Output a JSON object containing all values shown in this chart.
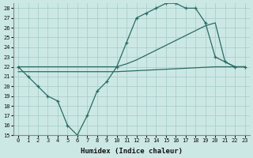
{
  "xlabel": "Humidex (Indice chaleur)",
  "bg_color": "#cce8e5",
  "grid_color": "#aacfcb",
  "line_color": "#2a6b65",
  "xlim": [
    -0.5,
    23.5
  ],
  "ylim": [
    15,
    28.5
  ],
  "xticks": [
    0,
    1,
    2,
    3,
    4,
    5,
    6,
    7,
    8,
    9,
    10,
    11,
    12,
    13,
    14,
    15,
    16,
    17,
    18,
    19,
    20,
    21,
    22,
    23
  ],
  "yticks": [
    15,
    16,
    17,
    18,
    19,
    20,
    21,
    22,
    23,
    24,
    25,
    26,
    27,
    28
  ],
  "line1_x": [
    0,
    1,
    2,
    3,
    4,
    5,
    6,
    7,
    8,
    9,
    10,
    11,
    12,
    13,
    14,
    15,
    16,
    17,
    18,
    19,
    20,
    21,
    22,
    23
  ],
  "line1_y": [
    22,
    21,
    20,
    19,
    18.5,
    16,
    15,
    17,
    19.5,
    20.5,
    22,
    24.5,
    27,
    27.5,
    28,
    28.5,
    28.5,
    28,
    28,
    26.5,
    23,
    22.5,
    22,
    22
  ],
  "line2_x": [
    0,
    10,
    20,
    23
  ],
  "line2_y": [
    21.5,
    21.5,
    22.0,
    22.0
  ],
  "line3_x": [
    0,
    10,
    11,
    12,
    13,
    14,
    15,
    16,
    17,
    18,
    19,
    20,
    21,
    22,
    23
  ],
  "line3_y": [
    22,
    22,
    22.3,
    22.7,
    23.2,
    23.7,
    24.2,
    24.7,
    25.2,
    25.7,
    26.2,
    26.5,
    22.5,
    22.0,
    22.0
  ]
}
